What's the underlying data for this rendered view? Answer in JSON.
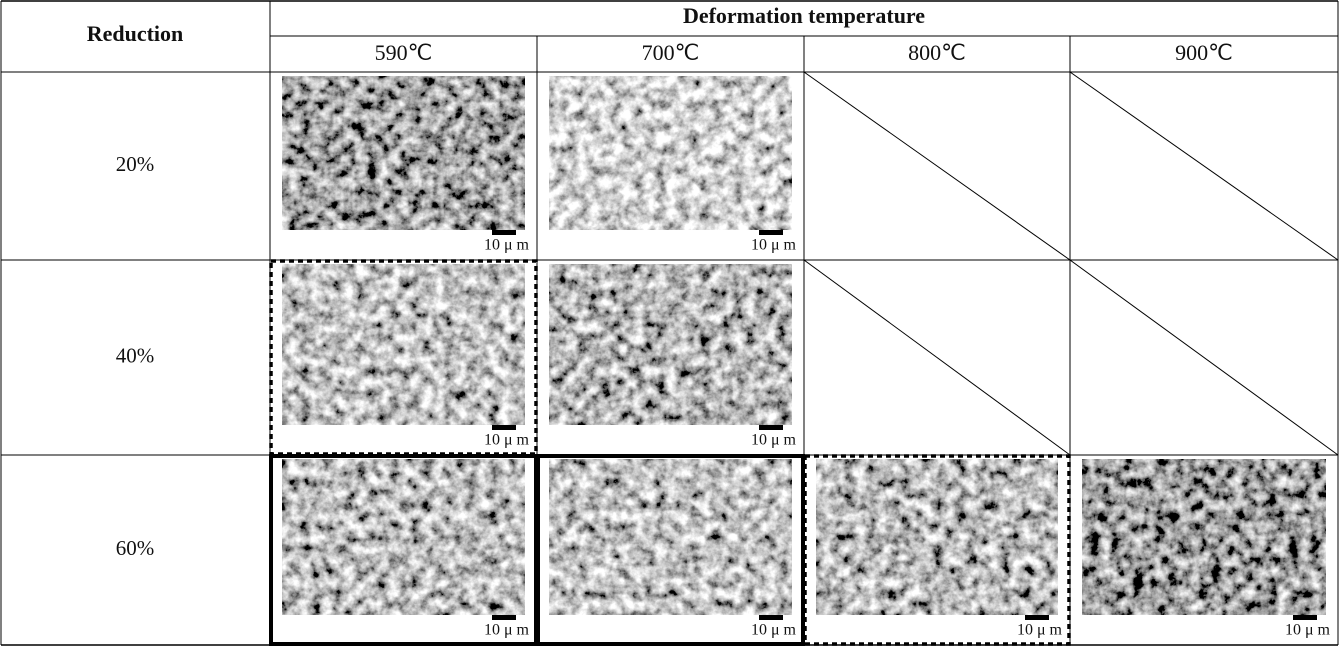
{
  "table": {
    "header": {
      "row_label": "Reduction",
      "group": "Deformation temperature",
      "columns": [
        "590℃",
        "700℃",
        "800℃",
        "900℃"
      ]
    },
    "rows": [
      {
        "label": "20%",
        "cells": [
          "10 μ m",
          "10 μ m",
          null,
          null
        ]
      },
      {
        "label": "40%",
        "cells": [
          "10 μ m",
          "10 μ m",
          null,
          null
        ]
      },
      {
        "label": "60%",
        "cells": [
          "10 μ m",
          "10 μ m",
          "10 μ m",
          "10 μ m"
        ]
      }
    ]
  }
}
